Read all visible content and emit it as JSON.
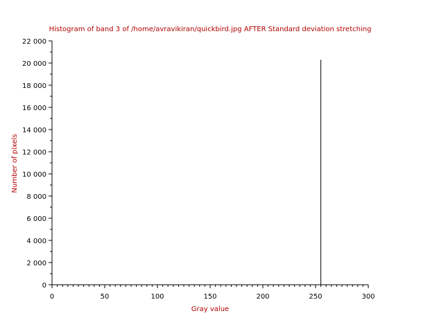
{
  "chart_data": {
    "type": "bar",
    "title": "Histogram of band 3 of /home/avravikiran/quickbird.jpg AFTER Standard deviation stretching",
    "xlabel": "Gray value",
    "ylabel": "Number of pixels",
    "xlim": [
      0,
      300
    ],
    "ylim": [
      0,
      22000
    ],
    "x_ticks": [
      0,
      50,
      100,
      150,
      200,
      250,
      300
    ],
    "x_tick_labels": [
      "0",
      "50",
      "100",
      "150",
      "200",
      "250",
      "300"
    ],
    "y_ticks": [
      0,
      2000,
      4000,
      6000,
      8000,
      10000,
      12000,
      14000,
      16000,
      18000,
      20000,
      22000
    ],
    "y_tick_labels": [
      "0",
      "2 000",
      "4 000",
      "6 000",
      "8 000",
      "10 000",
      "12 000",
      "14 000",
      "16 000",
      "18 000",
      "20 000",
      "22 000"
    ],
    "grid": false,
    "bars": [
      {
        "x": 255,
        "value": 20300
      }
    ],
    "colors": {
      "title": "#b30000",
      "axis_label": "#b30000",
      "bar": "#000000",
      "axis": "#000000"
    }
  }
}
